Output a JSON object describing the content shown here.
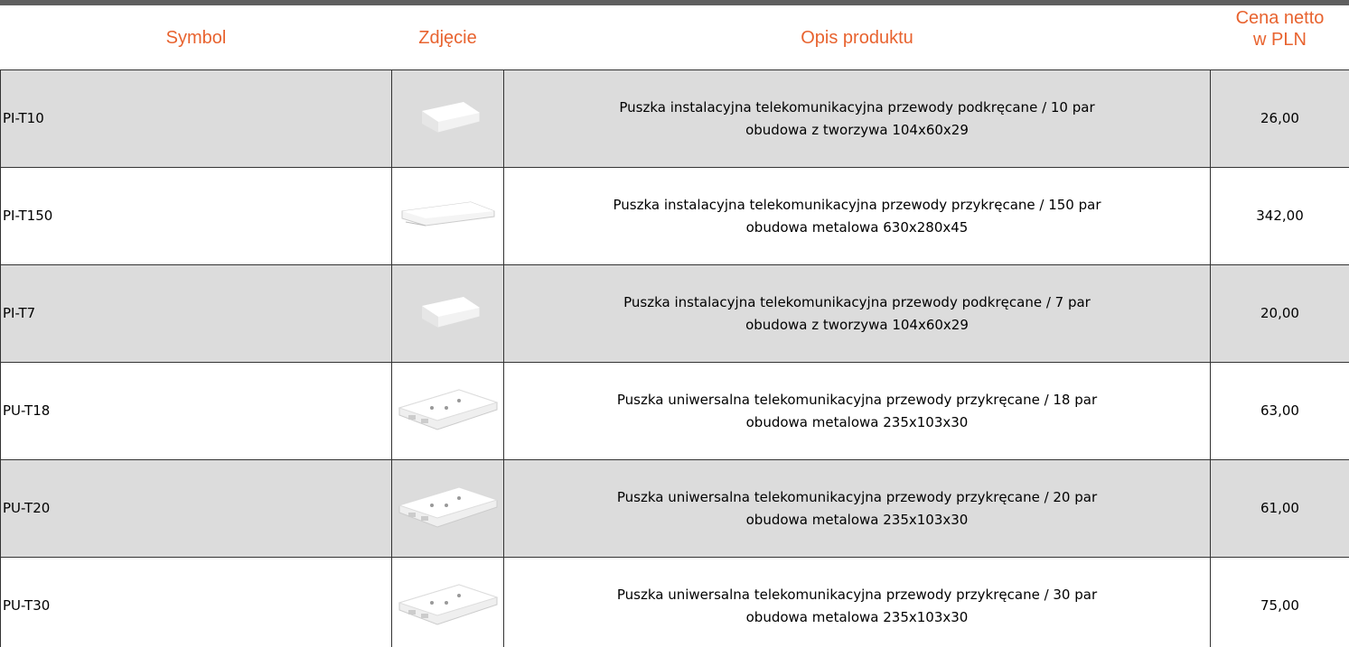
{
  "table": {
    "header": [
      "Symbol",
      "Zdjęcie",
      "Opis produktu",
      [
        "Cena netto",
        "w PLN"
      ]
    ],
    "rows": [
      [
        "PI-T10",
        [
          "Puszka instalacyjna telekomunikacyjna przewody podkręcane / 10 par",
          "obudowa z tworzywa 104x60x29"
        ],
        "26,00"
      ],
      [
        "PI-T150",
        [
          "Puszka instalacyjna telekomunikacyjna przewody przykręcane / 150 par",
          "obudowa metalowa 630x280x45"
        ],
        "342,00"
      ],
      [
        "PI-T7",
        [
          "Puszka instalacyjna telekomunikacyjna przewody podkręcane / 7 par",
          "obudowa z tworzywa 104x60x29"
        ],
        "20,00"
      ],
      [
        "PU-T18",
        [
          "Puszka uniwersalna telekomunikacyjna przewody przykręcane / 18 par",
          "obudowa metalowa 235x103x30"
        ],
        "63,00"
      ],
      [
        "PU-T20",
        [
          "Puszka uniwersalna telekomunikacyjna przewody przykręcane / 20 par",
          "obudowa metalowa 235x103x30"
        ],
        "61,00"
      ],
      [
        "PU-T30",
        [
          "Puszka uniwersalna telekomunikacyjna przewody przykręcane / 30 par",
          "obudowa metalowa 235x103x30"
        ],
        "75,00"
      ]
    ]
  }
}
